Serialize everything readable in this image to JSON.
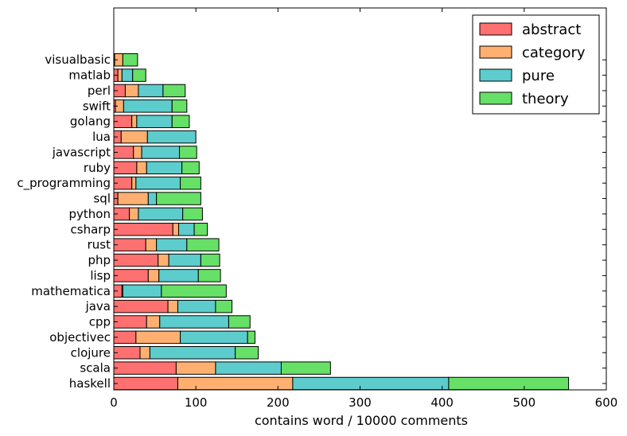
{
  "chart_data": {
    "type": "bar",
    "orientation": "horizontal",
    "stacked": true,
    "xlabel": "contains word / 10000 comments",
    "xlim": [
      0,
      600
    ],
    "xticks": [
      0,
      100,
      200,
      300,
      400,
      500,
      600
    ],
    "grid": false,
    "legend_position": "top-right",
    "categories": [
      "haskell",
      "scala",
      "clojure",
      "objectivec",
      "cpp",
      "java",
      "mathematica",
      "lisp",
      "php",
      "rust",
      "csharp",
      "python",
      "sql",
      "c_programming",
      "ruby",
      "javascript",
      "lua",
      "golang",
      "swift",
      "perl",
      "matlab",
      "visualbasic"
    ],
    "series": [
      {
        "name": "abstract",
        "color": "#ff7070",
        "values": [
          78,
          76,
          32,
          27,
          40,
          66,
          10,
          42,
          54,
          39,
          72,
          19,
          5,
          22,
          28,
          24,
          9,
          22,
          2,
          14,
          5,
          1
        ]
      },
      {
        "name": "category",
        "color": "#ffb070",
        "values": [
          140,
          48,
          12,
          54,
          16,
          12,
          1,
          13,
          13,
          13,
          7,
          11,
          37,
          5,
          12,
          10,
          32,
          6,
          10,
          16,
          5,
          10
        ]
      },
      {
        "name": "pure",
        "color": "#5ccccc",
        "values": [
          190,
          80,
          104,
          82,
          84,
          46,
          47,
          48,
          39,
          37,
          19,
          54,
          10,
          54,
          43,
          46,
          59,
          43,
          59,
          30,
          13,
          0
        ]
      },
      {
        "name": "theory",
        "color": "#66e066",
        "values": [
          146,
          60,
          28,
          9,
          26,
          20,
          79,
          27,
          23,
          39,
          16,
          24,
          54,
          25,
          21,
          21,
          0,
          21,
          18,
          27,
          16,
          18
        ]
      }
    ]
  }
}
